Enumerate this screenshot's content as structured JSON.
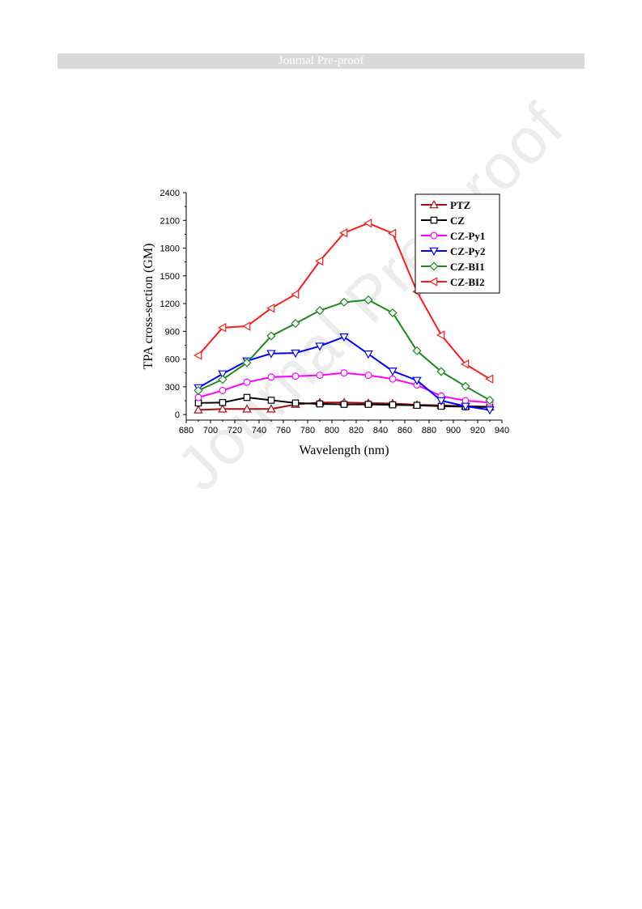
{
  "header": {
    "banner_text": "Journal Pre-proof"
  },
  "watermark": {
    "text": "Journal Pre-proof"
  },
  "chart_data": {
    "type": "line",
    "xlabel": "Wavelength (nm)",
    "ylabel": "TPA cross-section (GM)",
    "xlim": [
      680,
      940
    ],
    "ylim": [
      -60,
      2400
    ],
    "xticks": [
      680,
      700,
      720,
      740,
      760,
      780,
      800,
      820,
      840,
      860,
      880,
      900,
      920,
      940
    ],
    "yticks": [
      0,
      300,
      600,
      900,
      1200,
      1500,
      1800,
      2100,
      2400
    ],
    "grid": false,
    "legend_position": "top-right",
    "x": [
      690,
      710,
      730,
      750,
      770,
      790,
      810,
      830,
      850,
      870,
      890,
      910,
      930
    ],
    "series": [
      {
        "name": "PTZ",
        "color": "#a50f15",
        "marker": "triangle-up",
        "values": [
          50,
          60,
          60,
          60,
          110,
          130,
          130,
          125,
          120,
          105,
          100,
          90,
          85
        ]
      },
      {
        "name": "CZ",
        "color": "#000000",
        "marker": "square",
        "values": [
          125,
          130,
          185,
          155,
          125,
          115,
          110,
          110,
          105,
          100,
          90,
          85,
          80
        ]
      },
      {
        "name": "CZ-Py1",
        "color": "#ff00ff",
        "marker": "circle",
        "values": [
          185,
          260,
          350,
          405,
          415,
          425,
          450,
          425,
          385,
          320,
          200,
          150,
          130
        ]
      },
      {
        "name": "CZ-Py2",
        "color": "#0000ff",
        "marker": "triangle-down",
        "values": [
          290,
          440,
          580,
          660,
          665,
          740,
          840,
          655,
          470,
          370,
          150,
          90,
          50
        ]
      },
      {
        "name": "CZ-BI1",
        "color": "#1a8a1a",
        "marker": "diamond",
        "values": [
          260,
          380,
          560,
          850,
          985,
          1125,
          1215,
          1240,
          1100,
          690,
          465,
          305,
          155
        ]
      },
      {
        "name": "CZ-BI2",
        "color": "#ff1a1a",
        "marker": "triangle-left",
        "values": [
          640,
          940,
          955,
          1150,
          1300,
          1660,
          1965,
          2070,
          1960,
          1330,
          860,
          545,
          385
        ]
      }
    ]
  }
}
